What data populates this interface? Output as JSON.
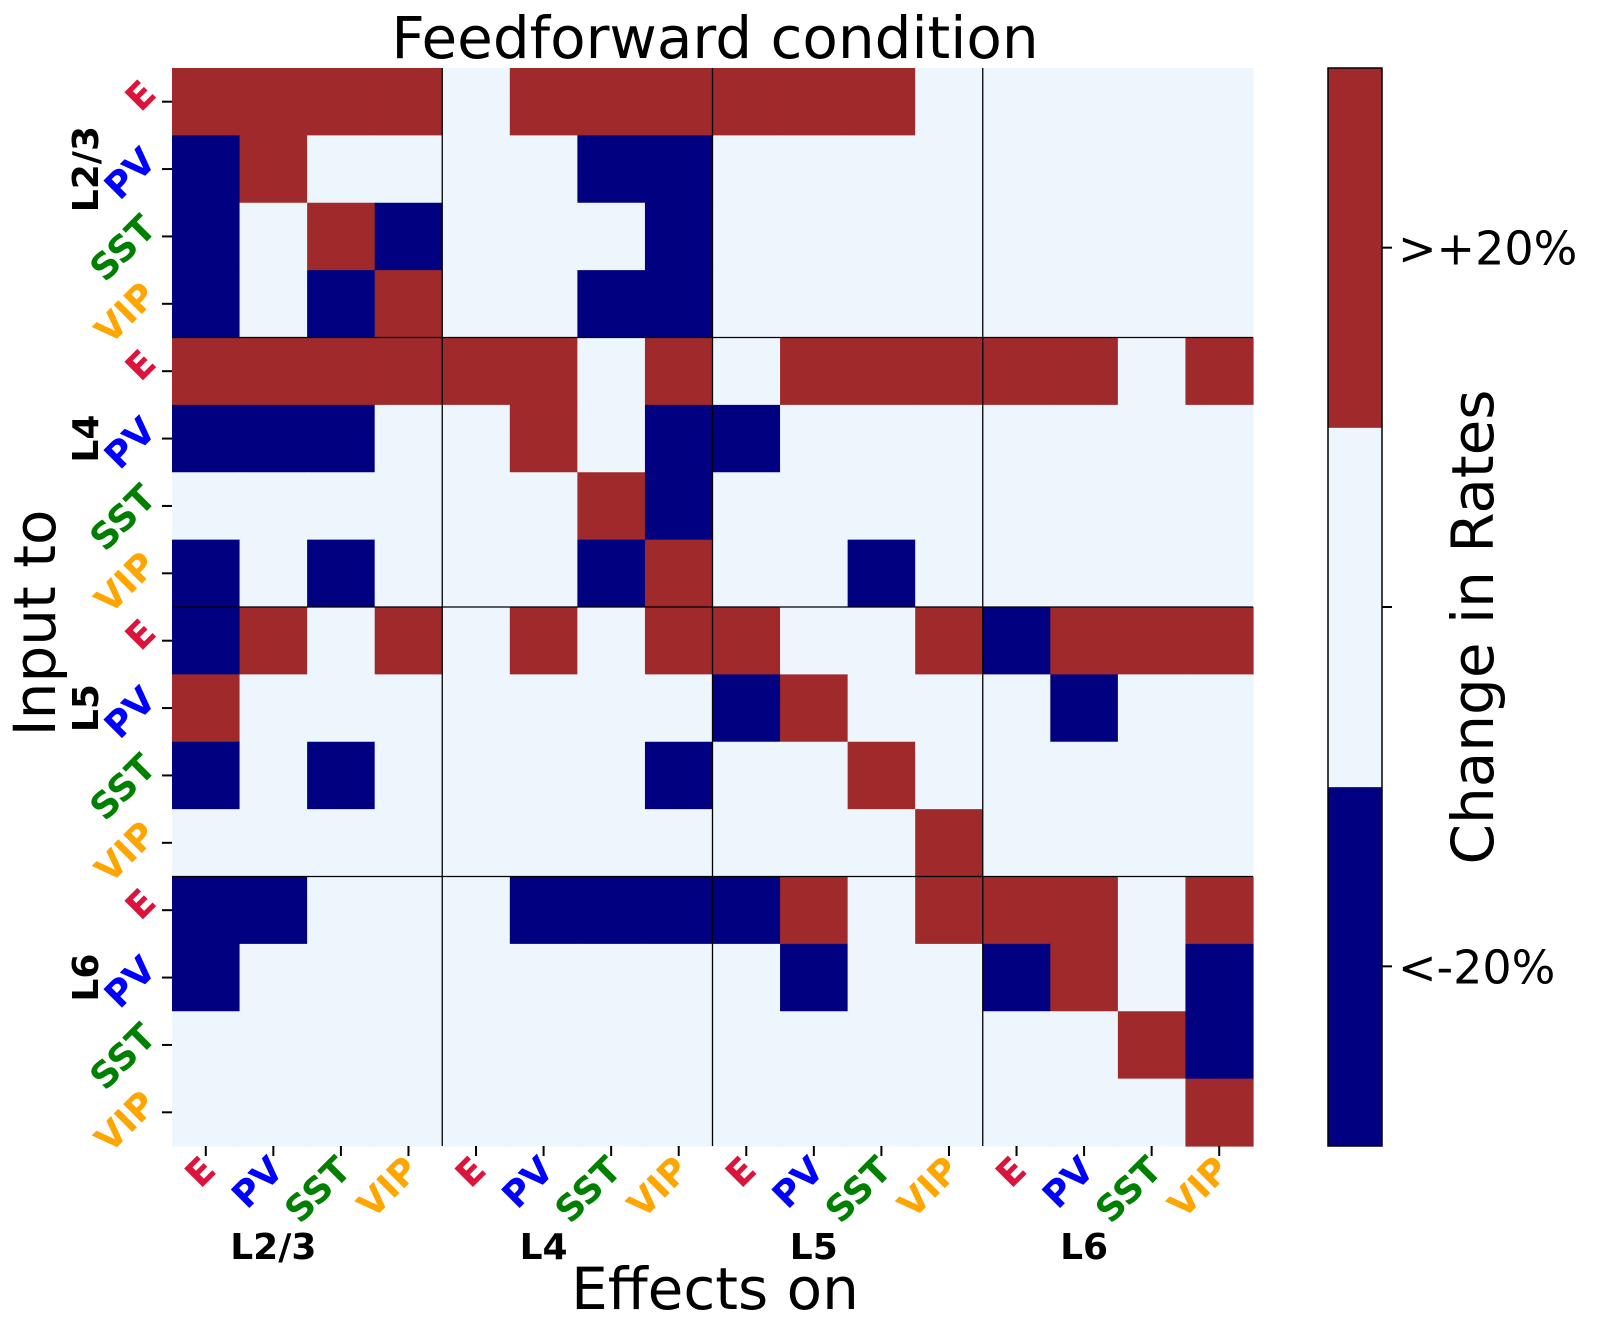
{
  "chart_data": {
    "type": "heatmap",
    "title": "Feedforward condition",
    "xlabel": "Effects on",
    "ylabel": "Input to",
    "layers": [
      "L2/3",
      "L4",
      "L5",
      "L6"
    ],
    "cell_types": [
      "E",
      "PV",
      "SST",
      "VIP"
    ],
    "cell_type_colors": {
      "E": "#dc143c",
      "PV": "#0000ff",
      "SST": "#008000",
      "VIP": "#ffa500"
    },
    "colorbar": {
      "title": "Change in Rates",
      "tick_labels": [
        "<-20%",
        "",
        ">+20%"
      ],
      "classes": [
        -1,
        0,
        1
      ],
      "colors": {
        "-1": "#000080",
        "0": "#eef6fd",
        "1": "#a0292c"
      }
    },
    "grid": "layer boundaries",
    "matrix": [
      [
        1,
        1,
        1,
        1,
        0,
        1,
        1,
        1,
        1,
        1,
        1,
        0,
        0,
        0,
        0,
        0
      ],
      [
        -1,
        1,
        0,
        0,
        0,
        0,
        -1,
        -1,
        0,
        0,
        0,
        0,
        0,
        0,
        0,
        0
      ],
      [
        -1,
        0,
        1,
        -1,
        0,
        0,
        0,
        -1,
        0,
        0,
        0,
        0,
        0,
        0,
        0,
        0
      ],
      [
        -1,
        0,
        -1,
        1,
        0,
        0,
        -1,
        -1,
        0,
        0,
        0,
        0,
        0,
        0,
        0,
        0
      ],
      [
        1,
        1,
        1,
        1,
        1,
        1,
        0,
        1,
        0,
        1,
        1,
        1,
        1,
        1,
        0,
        1
      ],
      [
        -1,
        -1,
        -1,
        0,
        0,
        1,
        0,
        -1,
        -1,
        0,
        0,
        0,
        0,
        0,
        0,
        0
      ],
      [
        0,
        0,
        0,
        0,
        0,
        0,
        1,
        -1,
        0,
        0,
        0,
        0,
        0,
        0,
        0,
        0
      ],
      [
        -1,
        0,
        -1,
        0,
        0,
        0,
        -1,
        1,
        0,
        0,
        -1,
        0,
        0,
        0,
        0,
        0
      ],
      [
        -1,
        1,
        0,
        1,
        0,
        1,
        0,
        1,
        1,
        0,
        0,
        1,
        -1,
        1,
        1,
        1
      ],
      [
        1,
        0,
        0,
        0,
        0,
        0,
        0,
        0,
        -1,
        1,
        0,
        0,
        0,
        -1,
        0,
        0
      ],
      [
        -1,
        0,
        -1,
        0,
        0,
        0,
        0,
        -1,
        0,
        0,
        1,
        0,
        0,
        0,
        0,
        0
      ],
      [
        0,
        0,
        0,
        0,
        0,
        0,
        0,
        0,
        0,
        0,
        0,
        1,
        0,
        0,
        0,
        0
      ],
      [
        -1,
        -1,
        0,
        0,
        0,
        -1,
        -1,
        -1,
        -1,
        1,
        0,
        1,
        1,
        1,
        0,
        1
      ],
      [
        -1,
        0,
        0,
        0,
        0,
        0,
        0,
        0,
        0,
        -1,
        0,
        0,
        -1,
        1,
        0,
        -1
      ],
      [
        0,
        0,
        0,
        0,
        0,
        0,
        0,
        0,
        0,
        0,
        0,
        0,
        0,
        0,
        1,
        -1
      ],
      [
        0,
        0,
        0,
        0,
        0,
        0,
        0,
        0,
        0,
        0,
        0,
        0,
        0,
        0,
        0,
        1
      ]
    ]
  }
}
